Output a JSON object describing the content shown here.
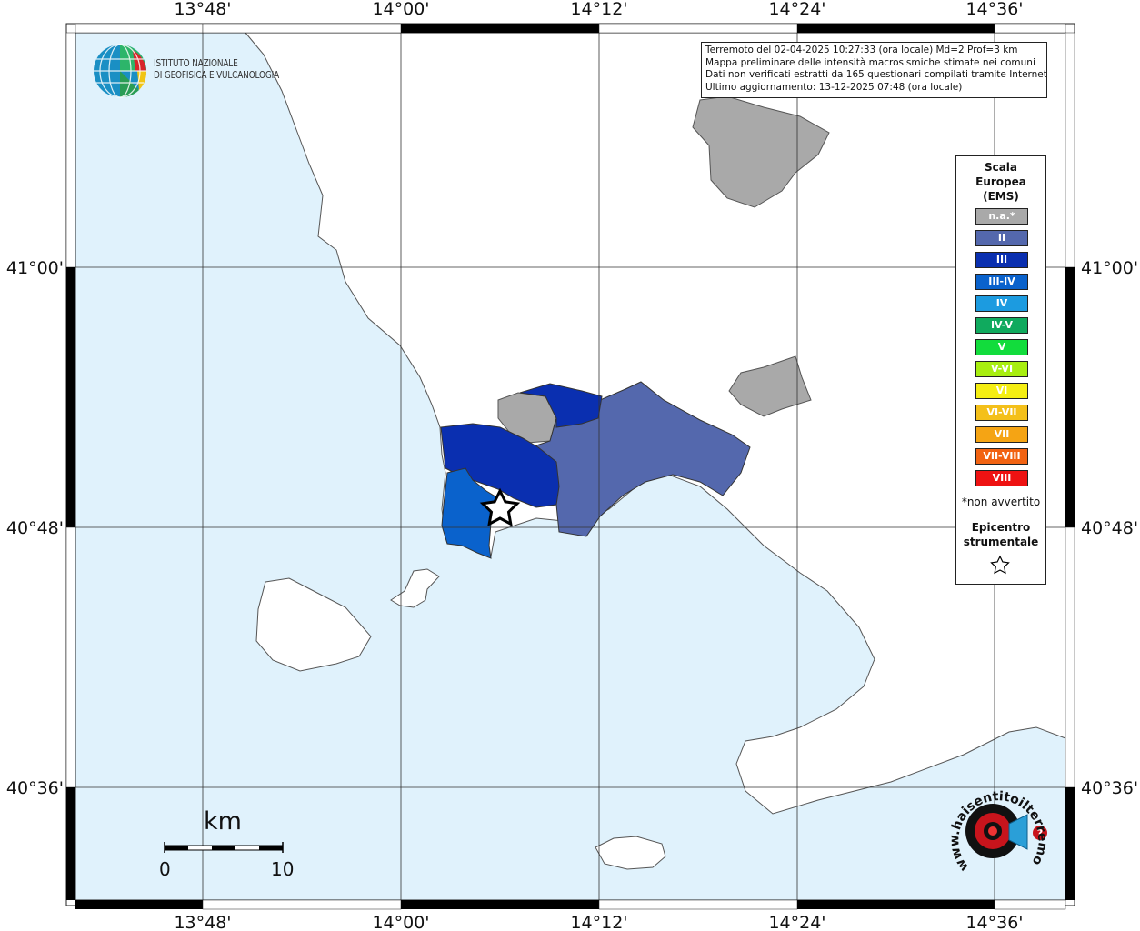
{
  "map": {
    "top_labels": [
      "13°48'",
      "14°00'",
      "14°12'",
      "14°24'",
      "14°36'"
    ],
    "bottom_labels": [
      "13°48'",
      "14°00'",
      "14°12'",
      "14°24'",
      "14°36'"
    ],
    "left_labels": [
      "41°00'",
      "40°48'",
      "40°36'"
    ],
    "right_labels": [
      "41°00'",
      "40°48'",
      "40°36'"
    ],
    "sea_color": "#e0f2fc",
    "land_color": "#ffffff",
    "epicenter": {
      "lon": 14.11,
      "lat": 40.82,
      "icon": "star-icon"
    },
    "regions": [
      {
        "name": "na-north",
        "class": "n.a.*",
        "color": "#a9a9a9"
      },
      {
        "name": "na-east",
        "class": "n.a.*",
        "color": "#a9a9a9"
      },
      {
        "name": "na-central",
        "class": "n.a.*",
        "color": "#a9a9a9"
      },
      {
        "name": "naples-east",
        "class": "II",
        "color": "#5468ad"
      },
      {
        "name": "north-naples",
        "class": "III",
        "color": "#0a2fb0"
      },
      {
        "name": "pozzuoli-north",
        "class": "III",
        "color": "#0a2fb0"
      },
      {
        "name": "pozzuoli",
        "class": "III-IV",
        "color": "#0a62cc"
      }
    ]
  },
  "info": {
    "lines": [
      "Terremoto del 02-04-2025 10:27:33 (ora locale) Md=2 Prof=3 km",
      "Mappa preliminare delle intensità macrosismiche stimate nei comuni",
      "Dati non verificati estratti da 165 questionari compilati tramite Internet.",
      "Ultimo aggiornamento: 13-12-2025 07:48 (ora locale)"
    ]
  },
  "logo": {
    "line1": "ISTITUTO NAZIONALE",
    "line2": "DI GEOFISICA E VULCANOLOGIA",
    "icon": "globe-icon"
  },
  "legend": {
    "title1": "Scala",
    "title2": "Europea",
    "title3": "(EMS)",
    "items": [
      {
        "label": "n.a.*",
        "color": "#a9a9a9"
      },
      {
        "label": "II",
        "color": "#5468ad"
      },
      {
        "label": "III",
        "color": "#0a2fb0"
      },
      {
        "label": "III-IV",
        "color": "#0a62cc"
      },
      {
        "label": "IV",
        "color": "#1c9be0"
      },
      {
        "label": "IV-V",
        "color": "#10aa5e"
      },
      {
        "label": "V",
        "color": "#12dc3c"
      },
      {
        "label": "V-VI",
        "color": "#a8ee10"
      },
      {
        "label": "VI",
        "color": "#f5ee12"
      },
      {
        "label": "VI-VII",
        "color": "#f4c01a"
      },
      {
        "label": "VII",
        "color": "#f5a414"
      },
      {
        "label": "VII-VIII",
        "color": "#f26312"
      },
      {
        "label": "VIII",
        "color": "#ee1212"
      }
    ],
    "note": "*non avvertito",
    "epicentro1": "Epicentro",
    "epicentro2": "strumentale"
  },
  "scale_bar": {
    "unit": "km",
    "label_start": "0",
    "label_end": "10"
  },
  "hai_sentito": {
    "text": "www.haisentitoilterremoto.it",
    "icon": "megaphone-icon"
  }
}
